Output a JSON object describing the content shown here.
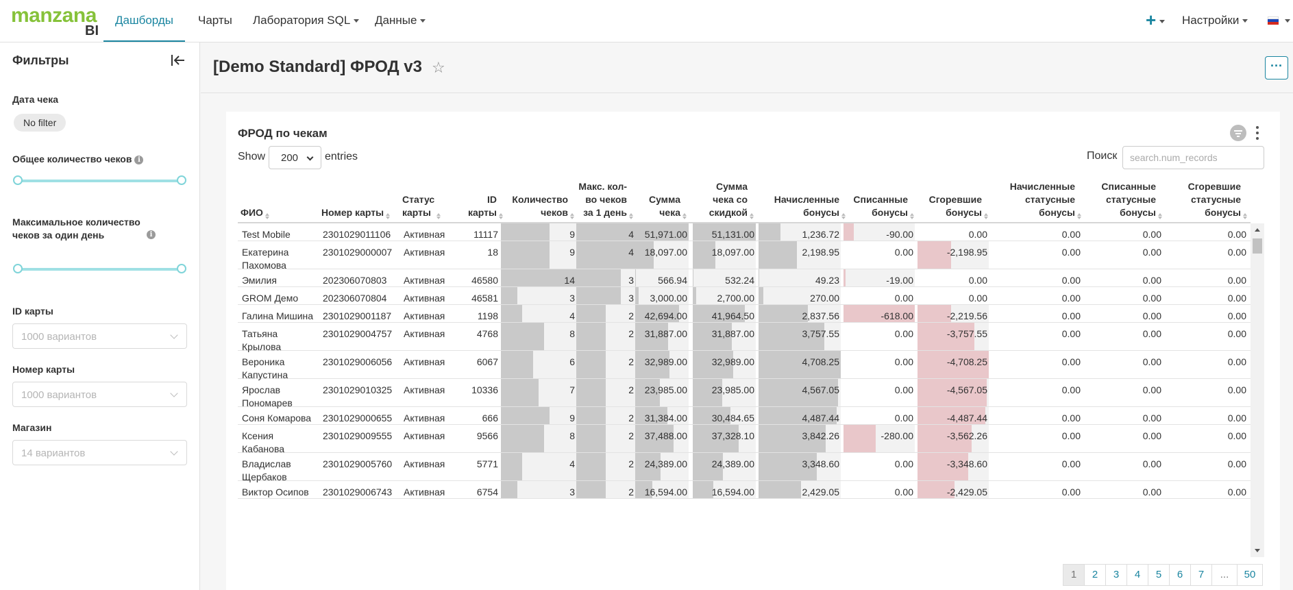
{
  "brand": {
    "logo_text": "manzana",
    "logo_suffix": "BI"
  },
  "nav": {
    "dashboards": "Дашборды",
    "charts": "Чарты",
    "sql_lab": "Лаборатория SQL",
    "data": "Данные",
    "settings": "Настройки",
    "plus": "+"
  },
  "filters": {
    "title": "Фильтры",
    "receipt_date_label": "Дата чека",
    "receipt_date_value": "No filter",
    "total_receipts_label": "Общее количество чеков",
    "max_receipts_label": "Максимальное количество чеков за один день",
    "card_id_label": "ID карты",
    "card_id_placeholder": "1000 вариантов",
    "card_number_label": "Номер карты",
    "card_number_placeholder": "1000 вариантов",
    "store_label": "Магазин",
    "store_placeholder": "14 вариантов"
  },
  "dashboard": {
    "title": "[Demo Standard] ФРОД v3",
    "more": "···"
  },
  "chart": {
    "title": "ФРОД по чекам",
    "show_label": "Show",
    "entries_value": "200",
    "entries_label": "entries",
    "search_label": "Поиск",
    "search_placeholder": "search.num_records"
  },
  "table": {
    "columns": [
      "ФИО",
      "Номер карты",
      "Статус карты",
      "ID карты",
      "Количество чеков",
      "Макс. кол-во чеков за 1 день",
      "Сумма чека",
      "Сумма чека со скидкой",
      "Начисленные бонусы",
      "Списанные бонусы",
      "Сгоревшие бонусы",
      "Начисленные статусные бонусы",
      "Списанные статусные бонусы",
      "Сгоревшие статусные бонусы"
    ],
    "rows": [
      {
        "fio": "Test Mobile",
        "card": "2301029011106",
        "status": "Активная",
        "id": "11117",
        "cnt": "9",
        "max": "4",
        "sum": "51,971.00",
        "disc": "51,131.00",
        "acc": "1,236.72",
        "spent": "-90.00",
        "burned": "0.00",
        "sacc": "0.00",
        "sspent": "0.00",
        "sburned": "0.00"
      },
      {
        "fio": "Екатерина Пахомова",
        "card": "2301029000007",
        "status": "Активная",
        "id": "18",
        "cnt": "9",
        "max": "4",
        "sum": "18,097.00",
        "disc": "18,097.00",
        "acc": "2,198.95",
        "spent": "0.00",
        "burned": "-2,198.95",
        "sacc": "0.00",
        "sspent": "0.00",
        "sburned": "0.00"
      },
      {
        "fio": "Эмилия",
        "card": "202306070803",
        "status": "Активная",
        "id": "46580",
        "cnt": "14",
        "max": "3",
        "sum": "566.94",
        "disc": "532.24",
        "acc": "49.23",
        "spent": "-19.00",
        "burned": "0.00",
        "sacc": "0.00",
        "sspent": "0.00",
        "sburned": "0.00"
      },
      {
        "fio": "GROM Демо",
        "card": "202306070804",
        "status": "Активная",
        "id": "46581",
        "cnt": "3",
        "max": "3",
        "sum": "3,000.00",
        "disc": "2,700.00",
        "acc": "270.00",
        "spent": "0.00",
        "burned": "0.00",
        "sacc": "0.00",
        "sspent": "0.00",
        "sburned": "0.00"
      },
      {
        "fio": "Галина Мишина",
        "card": "2301029001187",
        "status": "Активная",
        "id": "1198",
        "cnt": "4",
        "max": "2",
        "sum": "42,694.00",
        "disc": "41,964.50",
        "acc": "2,837.56",
        "spent": "-618.00",
        "burned": "-2,219.56",
        "sacc": "0.00",
        "sspent": "0.00",
        "sburned": "0.00"
      },
      {
        "fio": "Татьяна Крылова",
        "card": "2301029004757",
        "status": "Активная",
        "id": "4768",
        "cnt": "8",
        "max": "2",
        "sum": "31,887.00",
        "disc": "31,887.00",
        "acc": "3,757.55",
        "spent": "0.00",
        "burned": "-3,757.55",
        "sacc": "0.00",
        "sspent": "0.00",
        "sburned": "0.00"
      },
      {
        "fio": "Вероника Капустина",
        "card": "2301029006056",
        "status": "Активная",
        "id": "6067",
        "cnt": "6",
        "max": "2",
        "sum": "32,989.00",
        "disc": "32,989.00",
        "acc": "4,708.25",
        "spent": "0.00",
        "burned": "-4,708.25",
        "sacc": "0.00",
        "sspent": "0.00",
        "sburned": "0.00"
      },
      {
        "fio": "Ярослав Пономарев",
        "card": "2301029010325",
        "status": "Активная",
        "id": "10336",
        "cnt": "7",
        "max": "2",
        "sum": "23,985.00",
        "disc": "23,985.00",
        "acc": "4,567.05",
        "spent": "0.00",
        "burned": "-4,567.05",
        "sacc": "0.00",
        "sspent": "0.00",
        "sburned": "0.00"
      },
      {
        "fio": "Соня Комарова",
        "card": "2301029000655",
        "status": "Активная",
        "id": "666",
        "cnt": "9",
        "max": "2",
        "sum": "31,384.00",
        "disc": "30,484.65",
        "acc": "4,487.44",
        "spent": "0.00",
        "burned": "-4,487.44",
        "sacc": "0.00",
        "sspent": "0.00",
        "sburned": "0.00"
      },
      {
        "fio": "Ксения Кабанова",
        "card": "2301029009555",
        "status": "Активная",
        "id": "9566",
        "cnt": "8",
        "max": "2",
        "sum": "37,488.00",
        "disc": "37,328.10",
        "acc": "3,842.26",
        "spent": "-280.00",
        "burned": "-3,562.26",
        "sacc": "0.00",
        "sspent": "0.00",
        "sburned": "0.00"
      },
      {
        "fio": "Владислав Щербаков",
        "card": "2301029005760",
        "status": "Активная",
        "id": "5771",
        "cnt": "4",
        "max": "2",
        "sum": "24,389.00",
        "disc": "24,389.00",
        "acc": "3,348.60",
        "spent": "0.00",
        "burned": "-3,348.60",
        "sacc": "0.00",
        "sspent": "0.00",
        "sburned": "0.00"
      },
      {
        "fio": "Виктор Осипов",
        "card": "2301029006743",
        "status": "Активная",
        "id": "6754",
        "cnt": "3",
        "max": "2",
        "sum": "16,594.00",
        "disc": "16,594.00",
        "acc": "2,429.05",
        "spent": "0.00",
        "burned": "-2,429.05",
        "sacc": "0.00",
        "sspent": "0.00",
        "sburned": "0.00"
      }
    ]
  },
  "pagination": {
    "pages": [
      "1",
      "2",
      "3",
      "4",
      "5",
      "6",
      "7",
      "...",
      "50"
    ],
    "current": "1"
  },
  "colors": {
    "accent": "#1a85a0",
    "brand_green": "#86c23a",
    "bar_grey": "#c9c9c9",
    "bar_pink": "#e9c7ca",
    "slider": "#9fe0e4"
  }
}
